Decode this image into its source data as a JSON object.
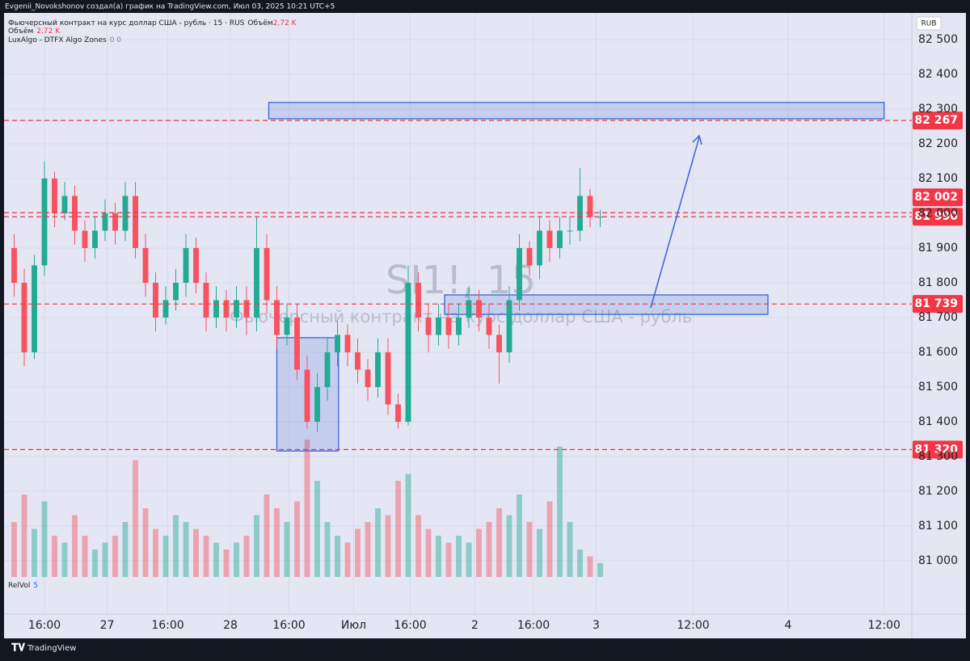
{
  "header": {
    "text": "Evgenii_Novokshonov создал(а) график на TradingView.com, Июл 03, 2025 10:21 UTC+5"
  },
  "legend": {
    "symbol": "Фьючерсный контракт на курс доллар США - рубль · 15 · RUS",
    "volume_name": "Объём",
    "volume_value": "2,72 K",
    "indicator": "LuxAlgo - DTFX Algo Zones",
    "indicator_args": "0 0",
    "relvol": "RelVol",
    "relvol_arg": "5"
  },
  "watermark": {
    "symbol": "SI1!, 15",
    "description": "Фьючерсный контракт на курс доллар США - рубль"
  },
  "currency": "RUB",
  "footer": {
    "brand": "TradingView"
  },
  "chart_data": {
    "type": "candlestick",
    "up_color": "#22ab94",
    "down_color": "#f7525f",
    "grid": true,
    "x": [
      1,
      2,
      3,
      4,
      5,
      6,
      7,
      8,
      9,
      10,
      11,
      12,
      13,
      14,
      15,
      16,
      17,
      18,
      19,
      20,
      21,
      22,
      23,
      24,
      25,
      26,
      27,
      28,
      29,
      30,
      31,
      32,
      33,
      34,
      35,
      36,
      37,
      38,
      39,
      40,
      41,
      42,
      43,
      44,
      45,
      46,
      47,
      48,
      49,
      50,
      51,
      52,
      53,
      54,
      55,
      56,
      57,
      58,
      59
    ],
    "open": [
      81900,
      81800,
      81600,
      81850,
      82100,
      82000,
      82050,
      81950,
      81900,
      81950,
      82000,
      81950,
      82050,
      81900,
      81800,
      81700,
      81750,
      81800,
      81900,
      81800,
      81700,
      81750,
      81700,
      81750,
      81700,
      81900,
      81750,
      81650,
      81700,
      81550,
      81400,
      81500,
      81600,
      81650,
      81600,
      81550,
      81500,
      81600,
      81450,
      81400,
      81800,
      81700,
      81650,
      81700,
      81650,
      81700,
      81750,
      81700,
      81650,
      81600,
      81750,
      81900,
      81850,
      81950,
      81900,
      81950,
      81950,
      82050,
      81990
    ],
    "high": [
      81940,
      81840,
      81880,
      82150,
      82120,
      82090,
      82080,
      81980,
      81990,
      82040,
      82030,
      82090,
      82090,
      81940,
      81830,
      81790,
      81840,
      81940,
      81930,
      81830,
      81790,
      81780,
      81790,
      81790,
      81990,
      81940,
      81790,
      81740,
      81740,
      81590,
      81540,
      81640,
      81690,
      81680,
      81640,
      81580,
      81640,
      81640,
      81480,
      81850,
      81830,
      81740,
      81740,
      81740,
      81740,
      81790,
      81780,
      81740,
      81680,
      81790,
      81940,
      81920,
      81990,
      81980,
      81990,
      81990,
      82130,
      82070,
      82010
    ],
    "low": [
      81760,
      81560,
      81580,
      81820,
      81960,
      81980,
      81910,
      81860,
      81870,
      81920,
      81910,
      81920,
      81870,
      81760,
      81660,
      81680,
      81720,
      81760,
      81770,
      81660,
      81670,
      81660,
      81670,
      81650,
      81660,
      81710,
      81610,
      81620,
      81520,
      81380,
      81370,
      81460,
      81560,
      81560,
      81510,
      81460,
      81470,
      81420,
      81380,
      81390,
      81660,
      81600,
      81620,
      81610,
      81620,
      81670,
      81660,
      81610,
      81510,
      81570,
      81720,
      81820,
      81810,
      81860,
      81870,
      81910,
      81920,
      81960,
      81960
    ],
    "close": [
      81800,
      81600,
      81850,
      82100,
      82000,
      82050,
      81950,
      81900,
      81950,
      82000,
      81950,
      82050,
      81900,
      81800,
      81700,
      81750,
      81800,
      81900,
      81800,
      81700,
      81750,
      81700,
      81750,
      81700,
      81900,
      81750,
      81650,
      81700,
      81550,
      81400,
      81500,
      81600,
      81650,
      81600,
      81550,
      81500,
      81600,
      81450,
      81400,
      81800,
      81700,
      81650,
      81700,
      81650,
      81700,
      81750,
      81700,
      81650,
      81600,
      81750,
      81900,
      81850,
      81950,
      81900,
      81950,
      81950,
      82050,
      81990,
      81990
    ],
    "volume": [
      40,
      60,
      35,
      55,
      30,
      25,
      45,
      30,
      20,
      25,
      30,
      40,
      85,
      50,
      35,
      30,
      45,
      40,
      35,
      30,
      25,
      20,
      25,
      30,
      45,
      60,
      50,
      40,
      55,
      100,
      70,
      40,
      30,
      25,
      35,
      40,
      50,
      45,
      70,
      75,
      45,
      35,
      30,
      25,
      30,
      25,
      35,
      40,
      50,
      45,
      60,
      40,
      35,
      55,
      95,
      40,
      20,
      15,
      10
    ],
    "xlim": [
      0,
      90
    ],
    "xticks": [
      {
        "value": 4,
        "label": "16:00"
      },
      {
        "value": 10.2,
        "label": "27"
      },
      {
        "value": 16.2,
        "label": "16:00"
      },
      {
        "value": 22.4,
        "label": "28"
      },
      {
        "value": 28.2,
        "label": "16:00"
      },
      {
        "value": 34.6,
        "label": "Июл"
      },
      {
        "value": 40.2,
        "label": "16:00"
      },
      {
        "value": 46.6,
        "label": "2"
      },
      {
        "value": 52.4,
        "label": "16:00"
      },
      {
        "value": 58.6,
        "label": "3"
      },
      {
        "value": 68.2,
        "label": "12:00"
      },
      {
        "value": 77.6,
        "label": "4"
      },
      {
        "value": 87.1,
        "label": "12:00"
      }
    ],
    "ylim": [
      80851,
      82572
    ],
    "yticks": [
      {
        "value": 81000,
        "label": "81 000"
      },
      {
        "value": 81100,
        "label": "81 100"
      },
      {
        "value": 81200,
        "label": "81 200"
      },
      {
        "value": 81300,
        "label": "81 300"
      },
      {
        "value": 81400,
        "label": "81 400"
      },
      {
        "value": 81500,
        "label": "81 500"
      },
      {
        "value": 81600,
        "label": "81 600"
      },
      {
        "value": 81700,
        "label": "81 700"
      },
      {
        "value": 81800,
        "label": "81 800"
      },
      {
        "value": 81900,
        "label": "81 900"
      },
      {
        "value": 82000,
        "label": "82 000"
      },
      {
        "value": 82100,
        "label": "82 100"
      },
      {
        "value": 82200,
        "label": "82 200"
      },
      {
        "value": 82300,
        "label": "82 300"
      },
      {
        "value": 82400,
        "label": "82 400"
      },
      {
        "value": 82500,
        "label": "82 500"
      }
    ],
    "levels": [
      {
        "value": 82267,
        "label": "82 267"
      },
      {
        "value": 82002,
        "label": "82 002"
      },
      {
        "value": 81990,
        "label": "81 990"
      },
      {
        "value": 81739,
        "label": "81 739"
      },
      {
        "value": 81320,
        "label": "81 320"
      }
    ],
    "level_color": "#f23645",
    "zones": [
      {
        "x": [
          26.2,
          87.1
        ],
        "y": [
          82272,
          82319
        ]
      },
      {
        "x": [
          43.6,
          75.6
        ],
        "y": [
          81709,
          81765
        ]
      },
      {
        "x": [
          27.0,
          33.1
        ],
        "y": [
          81316,
          81642
        ]
      }
    ],
    "zone_color": "#3b63d8"
  }
}
